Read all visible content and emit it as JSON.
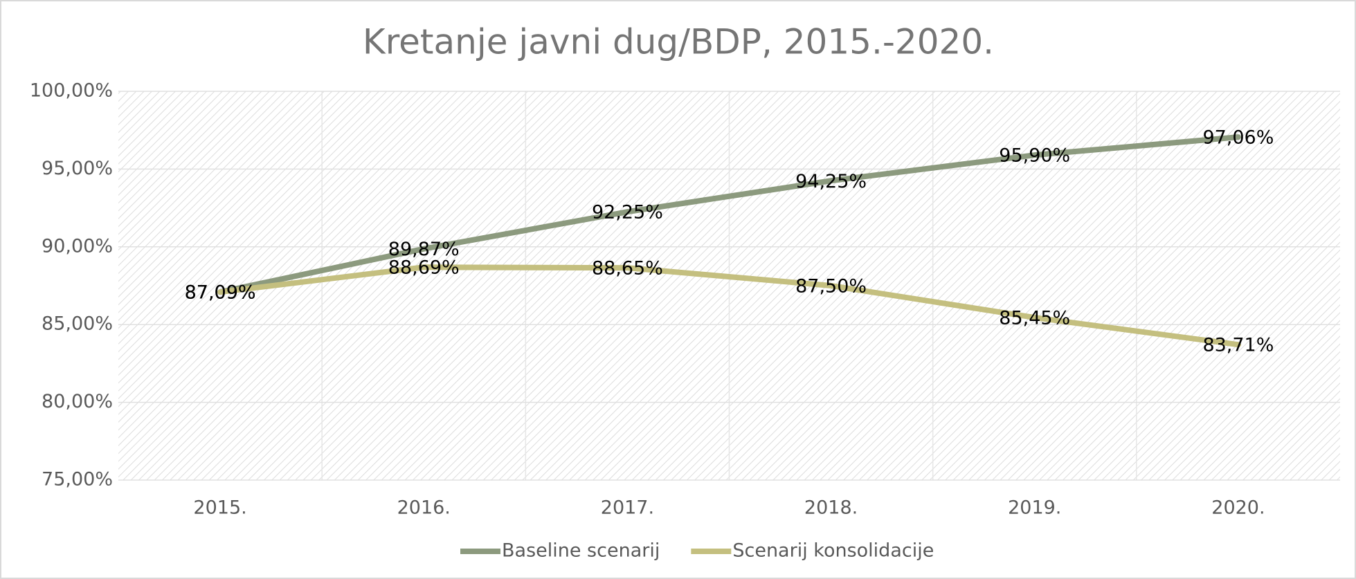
{
  "chart_data": {
    "type": "line",
    "title": "Kretanje javni dug/BDP, 2015.-2020.",
    "categories": [
      "2015.",
      "2016.",
      "2017.",
      "2018.",
      "2019.",
      "2020."
    ],
    "series": [
      {
        "name": "Baseline scenarij",
        "color": "#8c9a7e",
        "values": [
          87.09,
          89.87,
          92.25,
          94.25,
          95.9,
          97.06
        ],
        "value_labels": [
          "87,09%",
          "89,87%",
          "92,25%",
          "94,25%",
          "95,90%",
          "97,06%"
        ]
      },
      {
        "name": "Scenarij konsolidacije",
        "color": "#c4bf7f",
        "values": [
          87.09,
          88.69,
          88.65,
          87.5,
          85.45,
          83.71
        ],
        "value_labels": [
          "87,09%",
          "88,69%",
          "88,65%",
          "87,50%",
          "85,45%",
          "83,71%"
        ]
      }
    ],
    "ylim": [
      75,
      100
    ],
    "yticks": [
      {
        "value": 75,
        "label": "75,00%"
      },
      {
        "value": 80,
        "label": "80,00%"
      },
      {
        "value": 85,
        "label": "85,00%"
      },
      {
        "value": 90,
        "label": "90,00%"
      },
      {
        "value": 95,
        "label": "95,00%"
      },
      {
        "value": 100,
        "label": "100,00%"
      }
    ],
    "grid": true,
    "legend": "bottom"
  }
}
